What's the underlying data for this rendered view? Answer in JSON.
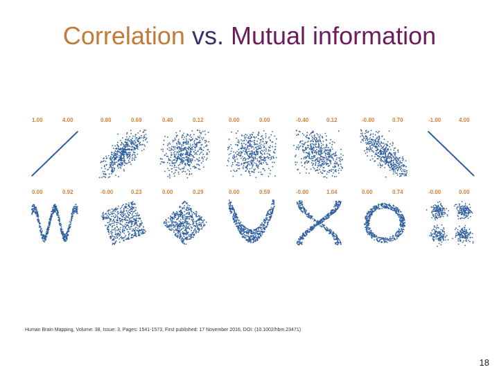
{
  "slide": {
    "title_part1": "Correlation",
    "title_part2": "vs.",
    "title_part3": "Mutual information",
    "citation": "Human Brain Mapping, Volume: 38, Issue: 3, Pages: 1541-1573, First published: 17 November 2016, DOI: (10.1002/hbm.23471)",
    "page_number": "18"
  },
  "colors": {
    "points": "#2e5e9e",
    "labels": "#d4823a"
  },
  "panels": [
    {
      "row": 0,
      "shape": "line-up",
      "correlation": "1.00",
      "mutual_information": "4.00"
    },
    {
      "row": 0,
      "shape": "corr-0.8",
      "correlation": "0.80",
      "mutual_information": "0.69"
    },
    {
      "row": 0,
      "shape": "corr-0.4",
      "correlation": "0.40",
      "mutual_information": "0.12"
    },
    {
      "row": 0,
      "shape": "corr-0",
      "correlation": "0.00",
      "mutual_information": "0.00"
    },
    {
      "row": 0,
      "shape": "corr-neg-0.4",
      "correlation": "-0.40",
      "mutual_information": "0.12"
    },
    {
      "row": 0,
      "shape": "corr-neg-0.8",
      "correlation": "-0.80",
      "mutual_information": "0.70"
    },
    {
      "row": 0,
      "shape": "line-down",
      "correlation": "-1.00",
      "mutual_information": "4.00"
    },
    {
      "row": 1,
      "shape": "wave",
      "correlation": "0.00",
      "mutual_information": "0.92"
    },
    {
      "row": 1,
      "shape": "rotated-square",
      "correlation": "-0.00",
      "mutual_information": "0.23"
    },
    {
      "row": 1,
      "shape": "diamond",
      "correlation": "0.00",
      "mutual_information": "0.29"
    },
    {
      "row": 1,
      "shape": "parabola",
      "correlation": "0.00",
      "mutual_information": "0.59"
    },
    {
      "row": 1,
      "shape": "x-cross",
      "correlation": "-0.00",
      "mutual_information": "1.04"
    },
    {
      "row": 1,
      "shape": "ring",
      "correlation": "0.00",
      "mutual_information": "0.74"
    },
    {
      "row": 1,
      "shape": "four-clusters",
      "correlation": "-0.00",
      "mutual_information": "0.00"
    }
  ]
}
